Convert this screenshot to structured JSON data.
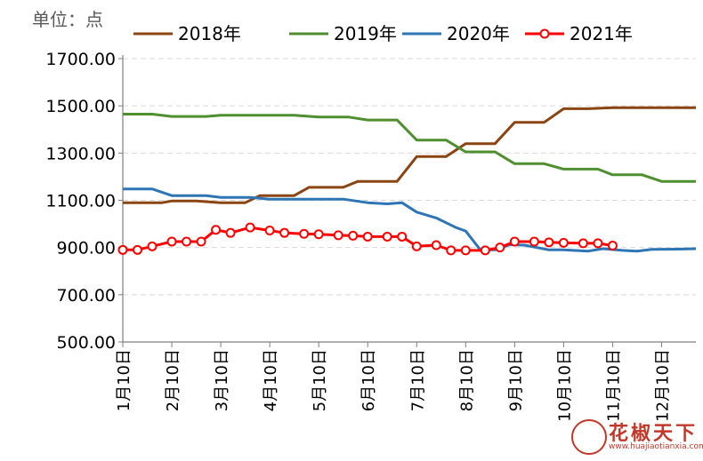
{
  "chart_data": {
    "type": "line",
    "unit_label": "单位：点",
    "x_ticks": [
      "1月10日",
      "2月10日",
      "3月10日",
      "4月10日",
      "5月10日",
      "6月10日",
      "7月10日",
      "8月10日",
      "9月10日",
      "10月10日",
      "11月10日",
      "12月10日"
    ],
    "xlim": [
      1,
      12.7
    ],
    "ylim": [
      500,
      1700
    ],
    "y_ticks": [
      "500.00",
      "700.00",
      "900.00",
      "1100.00",
      "1300.00",
      "1500.00",
      "1700.00"
    ],
    "grid": "horizontal dashed",
    "legend_position": "top",
    "series": [
      {
        "name": "2018年",
        "color": "#8B4513",
        "marker": "none",
        "points": [
          [
            1,
            1090
          ],
          [
            1.5,
            1090
          ],
          [
            1.8,
            1090
          ],
          [
            2,
            1097
          ],
          [
            2.5,
            1097
          ],
          [
            3,
            1090
          ],
          [
            3.5,
            1090
          ],
          [
            3.8,
            1120
          ],
          [
            4.5,
            1120
          ],
          [
            4.8,
            1155
          ],
          [
            5.5,
            1155
          ],
          [
            5.8,
            1180
          ],
          [
            6.6,
            1180
          ],
          [
            7,
            1285
          ],
          [
            7.6,
            1285
          ],
          [
            8,
            1340
          ],
          [
            8.6,
            1340
          ],
          [
            9,
            1430
          ],
          [
            9.6,
            1430
          ],
          [
            10,
            1488
          ],
          [
            10.5,
            1488
          ],
          [
            11,
            1492
          ],
          [
            12.7,
            1492
          ]
        ]
      },
      {
        "name": "2019年",
        "color": "#4F8F2F",
        "marker": "none",
        "points": [
          [
            1,
            1465
          ],
          [
            1.6,
            1465
          ],
          [
            2,
            1455
          ],
          [
            2.7,
            1455
          ],
          [
            3,
            1460
          ],
          [
            4.5,
            1460
          ],
          [
            5,
            1453
          ],
          [
            5.6,
            1453
          ],
          [
            6,
            1440
          ],
          [
            6.6,
            1440
          ],
          [
            7,
            1355
          ],
          [
            7.6,
            1355
          ],
          [
            8,
            1305
          ],
          [
            8.6,
            1305
          ],
          [
            9,
            1255
          ],
          [
            9.6,
            1255
          ],
          [
            10,
            1232
          ],
          [
            10.7,
            1232
          ],
          [
            11,
            1208
          ],
          [
            11.6,
            1208
          ],
          [
            12,
            1180
          ],
          [
            12.7,
            1180
          ]
        ]
      },
      {
        "name": "2020年",
        "color": "#2E75B6",
        "marker": "none",
        "points": [
          [
            1,
            1148
          ],
          [
            1.6,
            1148
          ],
          [
            2,
            1120
          ],
          [
            2.7,
            1120
          ],
          [
            3,
            1112
          ],
          [
            3.6,
            1112
          ],
          [
            4,
            1105
          ],
          [
            5.5,
            1105
          ],
          [
            6,
            1090
          ],
          [
            6.4,
            1085
          ],
          [
            6.7,
            1090
          ],
          [
            7,
            1050
          ],
          [
            7.4,
            1025
          ],
          [
            7.8,
            985
          ],
          [
            8,
            970
          ],
          [
            8.3,
            890
          ],
          [
            8.6,
            890
          ],
          [
            8.9,
            912
          ],
          [
            9.2,
            910
          ],
          [
            9.7,
            890
          ],
          [
            10,
            890
          ],
          [
            10.5,
            885
          ],
          [
            10.8,
            895
          ],
          [
            11.2,
            888
          ],
          [
            11.5,
            885
          ],
          [
            11.8,
            892
          ],
          [
            12.3,
            893
          ],
          [
            12.7,
            895
          ]
        ]
      },
      {
        "name": "2021年",
        "color": "#FF0000",
        "marker": "circle",
        "points": [
          [
            1,
            890
          ],
          [
            1.3,
            890
          ],
          [
            1.6,
            905
          ],
          [
            2,
            925
          ],
          [
            2.3,
            925
          ],
          [
            2.6,
            925
          ],
          [
            2.9,
            975
          ],
          [
            3.2,
            962
          ],
          [
            3.6,
            985
          ],
          [
            4,
            972
          ],
          [
            4.3,
            962
          ],
          [
            4.7,
            958
          ],
          [
            5,
            956
          ],
          [
            5.4,
            952
          ],
          [
            5.7,
            950
          ],
          [
            6,
            946
          ],
          [
            6.4,
            946
          ],
          [
            6.7,
            946
          ],
          [
            7,
            905
          ],
          [
            7.4,
            910
          ],
          [
            7.7,
            888
          ],
          [
            8,
            888
          ],
          [
            8.4,
            888
          ],
          [
            8.7,
            900
          ],
          [
            9,
            925
          ],
          [
            9.4,
            925
          ],
          [
            9.7,
            922
          ],
          [
            10,
            920
          ],
          [
            10.4,
            918
          ],
          [
            10.7,
            918
          ],
          [
            11,
            908
          ]
        ]
      }
    ]
  },
  "watermark": {
    "title": "花椒天下",
    "url": "www.huajiaotianxia.com"
  }
}
